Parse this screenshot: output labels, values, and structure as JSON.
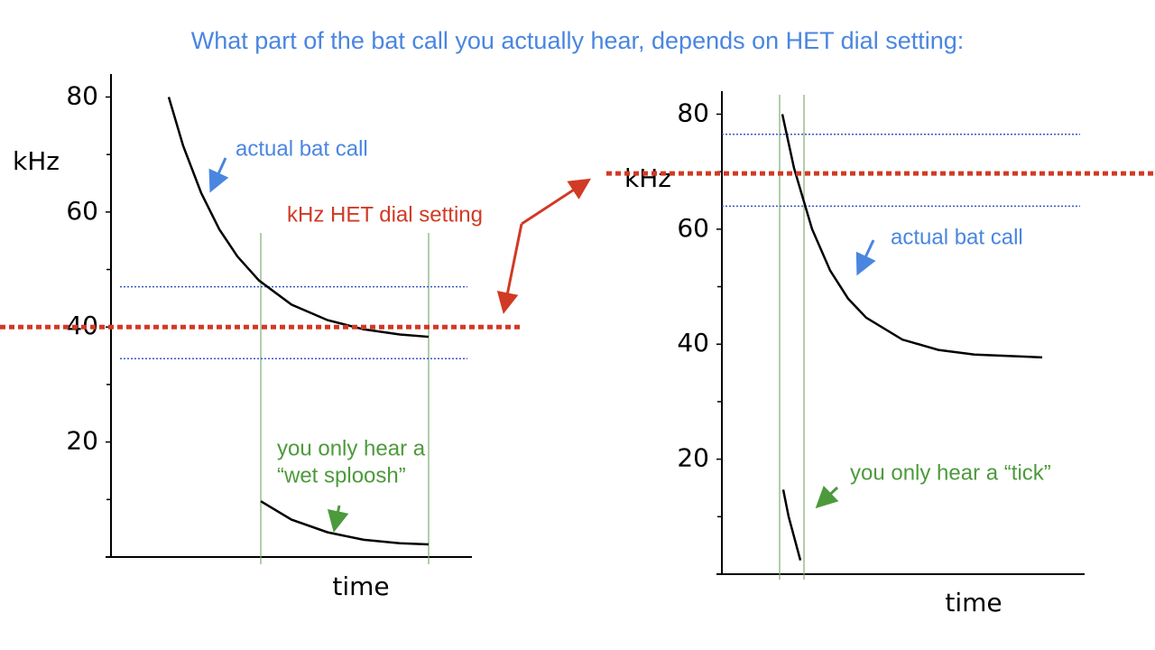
{
  "title": "What part of the bat call you actually hear, depends on HET dial setting:",
  "chart_data": [
    {
      "type": "line",
      "ylabel": "kHz",
      "xlabel": "time",
      "xlim": [
        0,
        100
      ],
      "ylim": [
        0,
        84
      ],
      "yticks": [
        20,
        40,
        60,
        80
      ],
      "minor_yticks": [
        10,
        30,
        50,
        70
      ],
      "series": [
        {
          "color": "#000000",
          "x": [
            16,
            20,
            25,
            30,
            35,
            41,
            50,
            60,
            70,
            80,
            88
          ],
          "values": [
            80,
            71.5,
            63.3,
            57.0,
            52.3,
            48.1,
            43.9,
            41.2,
            39.6,
            38.7,
            38.3
          ]
        },
        {
          "color": "#000000",
          "x": [
            41.5,
            50,
            60,
            70,
            80,
            88
          ],
          "values": [
            9.7,
            6.5,
            4.3,
            3.0,
            2.4,
            2.2
          ]
        }
      ],
      "het_setting": {
        "value": 40,
        "color": "#d13a24",
        "label": "kHz HET dial setting"
      },
      "band": {
        "values": [
          47,
          34.5
        ],
        "color": "#3b55c8"
      },
      "window_x": {
        "values": [
          41.5,
          88
        ],
        "color": "#7fae72"
      },
      "annotations": [
        {
          "lines": [
            "actual bat call"
          ],
          "color": "#4a86e0"
        },
        {
          "lines": [
            "you only hear a",
            "“wet sploosh”"
          ],
          "color": "#4c9a3c"
        }
      ]
    },
    {
      "type": "line",
      "ylabel": "kHz",
      "xlabel": "time",
      "xlim": [
        0,
        100
      ],
      "ylim": [
        0,
        84
      ],
      "yticks": [
        20,
        40,
        60,
        80
      ],
      "minor_yticks": [
        10,
        30,
        50,
        70
      ],
      "series": [
        {
          "color": "#000000",
          "x": [
            16.75,
            20,
            25,
            30,
            35,
            40,
            50,
            60,
            70,
            88.75
          ],
          "values": [
            80,
            70.6,
            60.0,
            52.8,
            47.9,
            44.6,
            40.8,
            39.0,
            38.2,
            37.7
          ]
        },
        {
          "color": "#000000",
          "x": [
            17,
            18.5,
            20,
            21.75
          ],
          "values": [
            14.7,
            10,
            6.5,
            2.4
          ]
        }
      ],
      "het_setting": {
        "value": 69.7,
        "color": "#d13a24"
      },
      "band": {
        "values": [
          76.5,
          64
        ],
        "color": "#3b55c8"
      },
      "window_x": {
        "values": [
          16,
          22.75
        ],
        "color": "#7fae72"
      },
      "annotations": [
        {
          "lines": [
            "actual bat call"
          ],
          "color": "#4a86e0"
        },
        {
          "lines": [
            "you only hear a “tick”"
          ],
          "color": "#4c9a3c"
        }
      ]
    }
  ]
}
